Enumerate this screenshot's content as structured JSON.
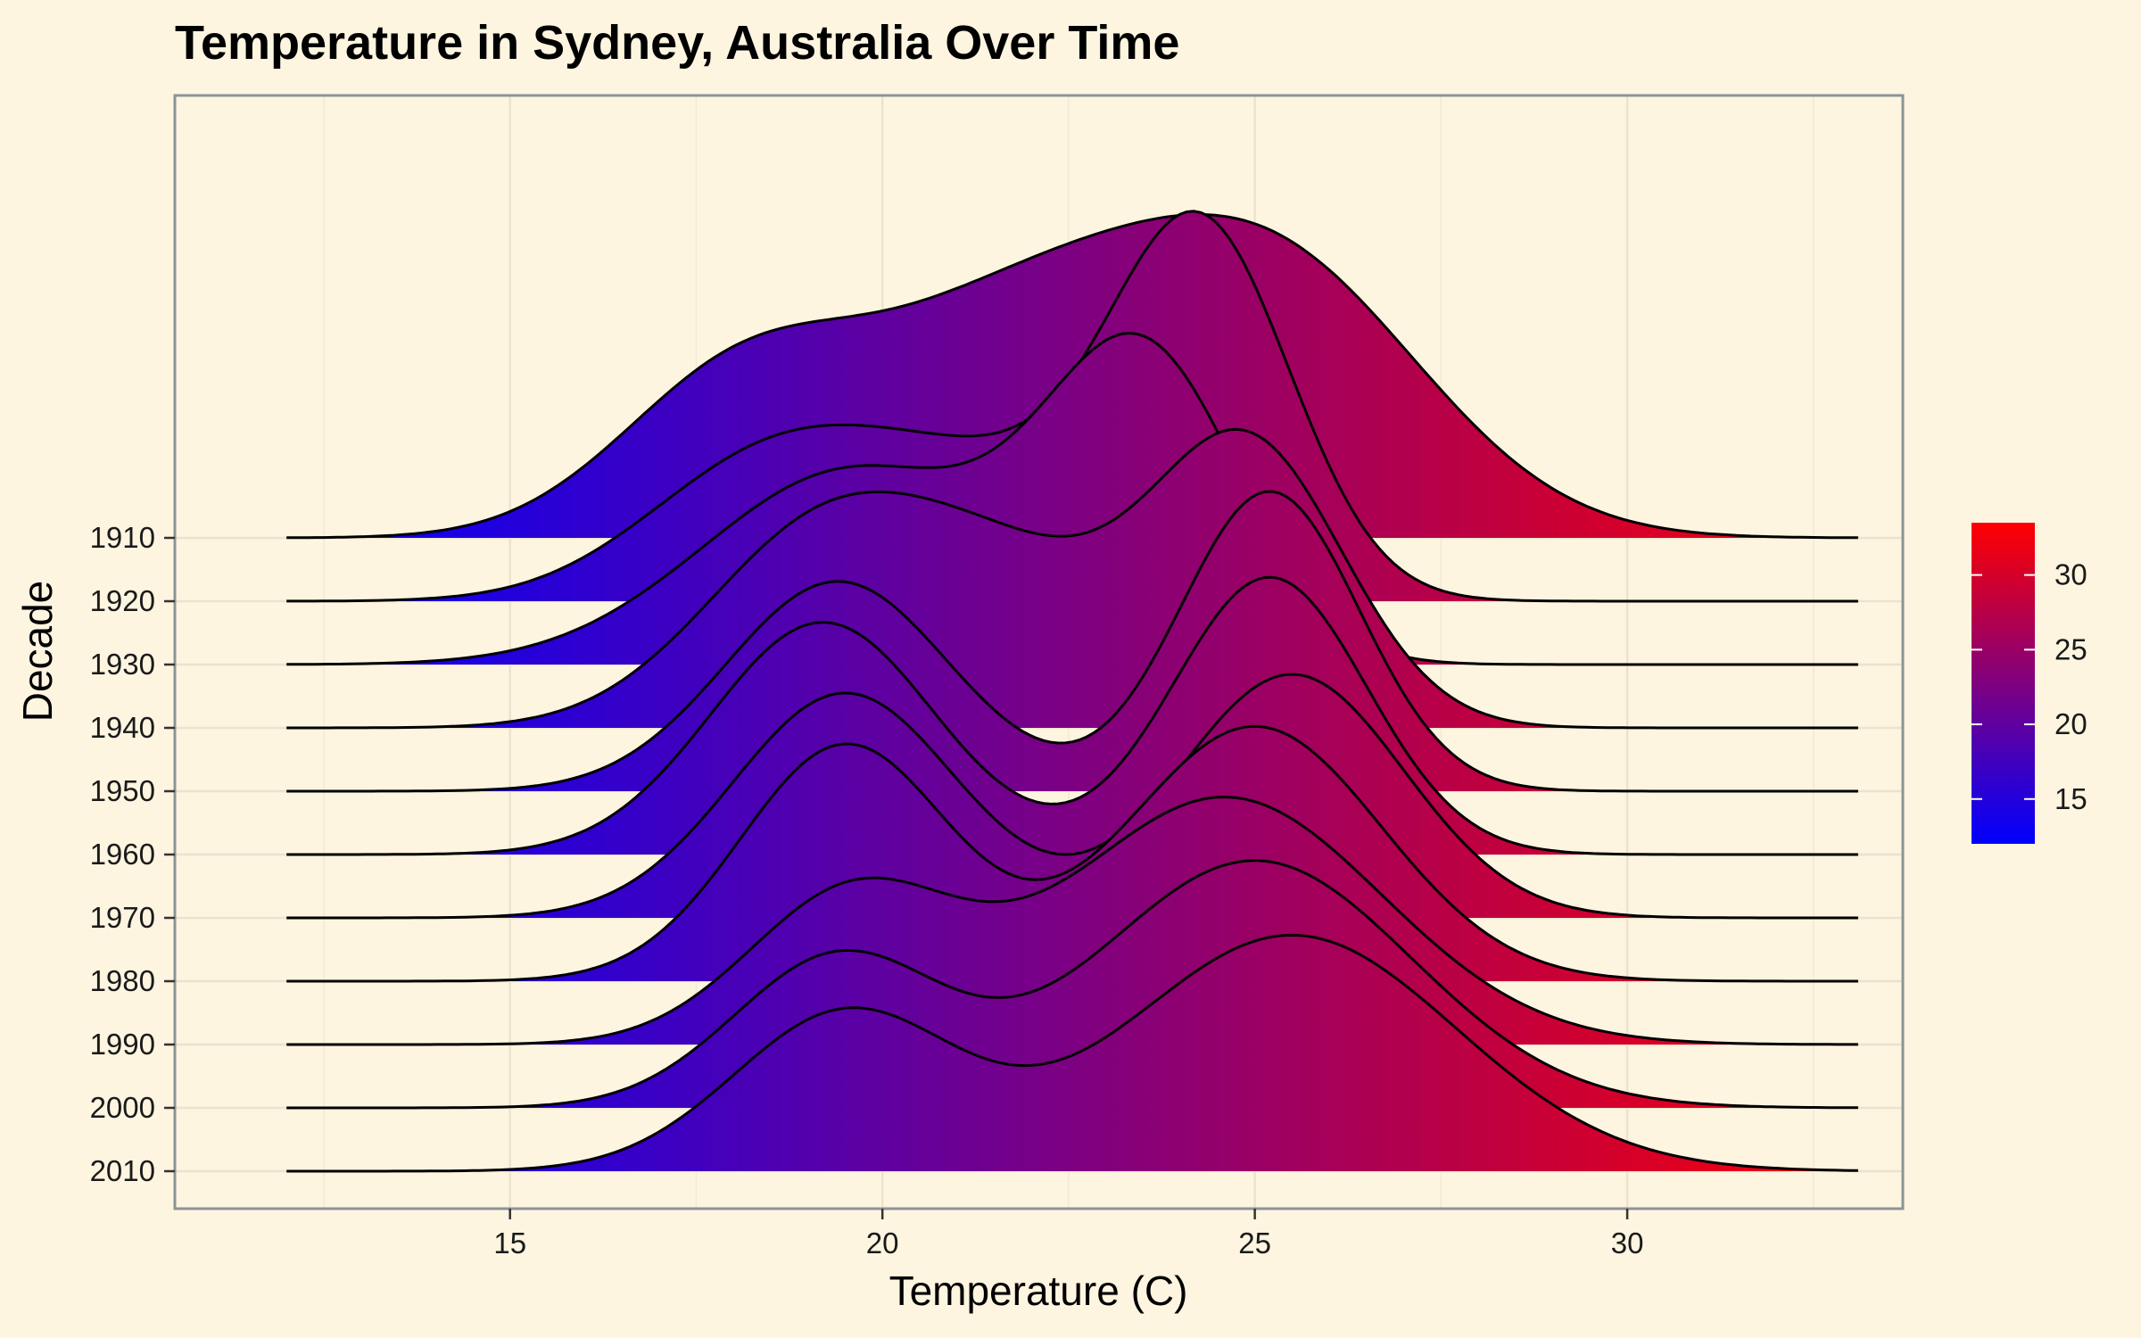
{
  "chart_data": {
    "type": "ridgeline",
    "title": "Temperature in Sydney, Australia Over Time",
    "xlabel": "Temperature (C)",
    "ylabel": "Decade",
    "xlim": [
      10.5,
      33.7
    ],
    "x_ticks": [
      15,
      20,
      25,
      30
    ],
    "density_range": [
      12.0,
      33.1
    ],
    "grid": true,
    "legend": {
      "position": "right",
      "range": [
        12.0,
        33.5
      ],
      "ticks": [
        15,
        20,
        25,
        30
      ],
      "low_color": "#0000ff",
      "high_color": "#ff0000"
    },
    "outline_color": "#000000",
    "series": [
      {
        "name": "1910",
        "peaks": [
          {
            "mu": 18.0,
            "sigma": 1.6,
            "a": 0.38
          },
          {
            "mu": 21.8,
            "sigma": 2.2,
            "a": 0.58
          },
          {
            "mu": 25.4,
            "sigma": 2.0,
            "a": 0.65
          }
        ]
      },
      {
        "name": "1920",
        "peaks": [
          {
            "mu": 18.3,
            "sigma": 1.6,
            "a": 0.3
          },
          {
            "mu": 21.2,
            "sigma": 2.0,
            "a": 0.35
          },
          {
            "mu": 24.3,
            "sigma": 1.2,
            "a": 0.93
          }
        ]
      },
      {
        "name": "1930",
        "peaks": [
          {
            "mu": 19.6,
            "sigma": 2.0,
            "a": 0.52
          },
          {
            "mu": 23.5,
            "sigma": 1.3,
            "a": 0.8
          }
        ]
      },
      {
        "name": "1940",
        "peaks": [
          {
            "mu": 19.2,
            "sigma": 1.6,
            "a": 0.52
          },
          {
            "mu": 21.8,
            "sigma": 1.5,
            "a": 0.35
          },
          {
            "mu": 24.9,
            "sigma": 1.3,
            "a": 0.75
          }
        ]
      },
      {
        "name": "1950",
        "peaks": [
          {
            "mu": 19.4,
            "sigma": 1.5,
            "a": 0.56
          },
          {
            "mu": 25.2,
            "sigma": 1.2,
            "a": 0.8
          }
        ]
      },
      {
        "name": "1960",
        "peaks": [
          {
            "mu": 19.2,
            "sigma": 1.5,
            "a": 0.62
          },
          {
            "mu": 25.2,
            "sigma": 1.3,
            "a": 0.74
          }
        ]
      },
      {
        "name": "1970",
        "peaks": [
          {
            "mu": 19.5,
            "sigma": 1.5,
            "a": 0.6
          },
          {
            "mu": 25.5,
            "sigma": 1.5,
            "a": 0.65
          }
        ]
      },
      {
        "name": "1980",
        "peaks": [
          {
            "mu": 19.5,
            "sigma": 1.4,
            "a": 0.63
          },
          {
            "mu": 25.0,
            "sigma": 1.7,
            "a": 0.68
          }
        ]
      },
      {
        "name": "1990",
        "peaks": [
          {
            "mu": 19.6,
            "sigma": 1.4,
            "a": 0.4
          },
          {
            "mu": 24.6,
            "sigma": 2.1,
            "a": 0.66
          }
        ]
      },
      {
        "name": "2000",
        "peaks": [
          {
            "mu": 19.4,
            "sigma": 1.4,
            "a": 0.4
          },
          {
            "mu": 25.0,
            "sigma": 2.1,
            "a": 0.66
          }
        ]
      },
      {
        "name": "2010",
        "peaks": [
          {
            "mu": 19.5,
            "sigma": 1.5,
            "a": 0.42
          },
          {
            "mu": 25.5,
            "sigma": 2.2,
            "a": 0.63
          }
        ]
      }
    ]
  }
}
